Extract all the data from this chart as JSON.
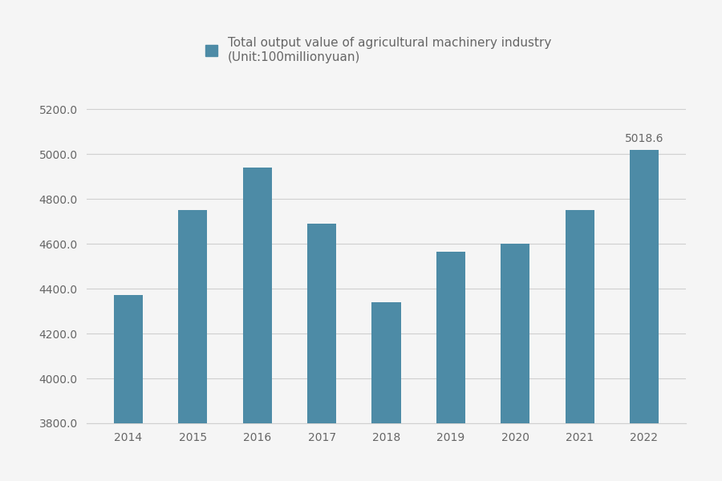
{
  "years": [
    "2014",
    "2015",
    "2016",
    "2017",
    "2018",
    "2019",
    "2020",
    "2021",
    "2022"
  ],
  "values": [
    4370,
    4750,
    4940,
    4690,
    4340,
    4565,
    4600,
    4750,
    5018.6
  ],
  "bar_color": "#4d8ba6",
  "annotation_value": 5018.6,
  "annotation_year_index": 8,
  "ymin": 3800,
  "ymax": 5300,
  "yticks": [
    3800.0,
    4000.0,
    4200.0,
    4400.0,
    4600.0,
    4800.0,
    5000.0,
    5200.0
  ],
  "legend_label_line1": "Total output value of agricultural machinery industry",
  "legend_label_line2": "(Unit:100millionyuan)",
  "background_color": "#f5f5f5",
  "grid_color": "#d0d0d0",
  "text_color": "#666666",
  "title_fontsize": 11,
  "tick_fontsize": 10,
  "annotation_fontsize": 10,
  "bar_width": 0.45
}
